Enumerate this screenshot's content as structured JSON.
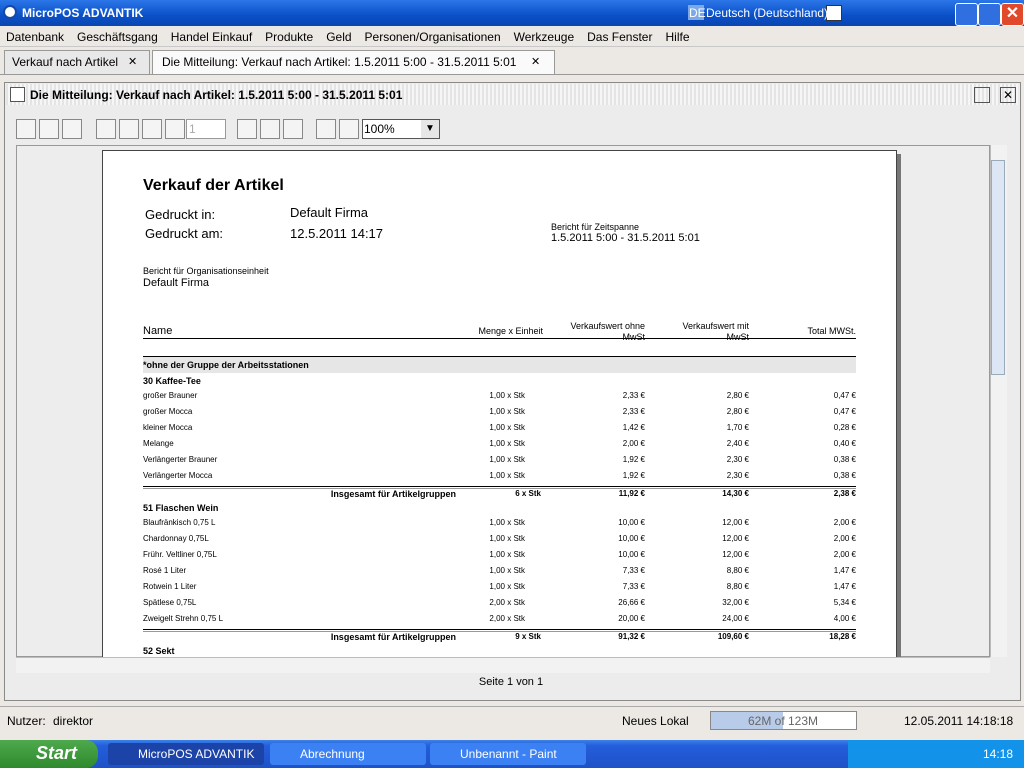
{
  "window": {
    "title": "MicroPOS ADVANTIK",
    "lang_code": "DE",
    "language": "Deutsch (Deutschland)"
  },
  "menu": [
    "Datenbank",
    "Geschäftsgang",
    "Handel Einkauf",
    "Produkte",
    "Geld",
    "Personen/Organisationen",
    "Werkzeuge",
    "Das Fenster",
    "Hilfe"
  ],
  "tabs": [
    "Verkauf nach Artikel",
    "Die Mitteilung: Verkauf nach Artikel: 1.5.2011 5:00 - 31.5.2011 5:01"
  ],
  "panel_title": "Die Mitteilung: Verkauf nach Artikel: 1.5.2011 5:00 - 31.5.2011 5:01",
  "toolbar": {
    "page": "1",
    "zoom": "100%"
  },
  "report": {
    "title": "Verkauf der Artikel",
    "printed_in_label": "Gedruckt in:",
    "printed_in": "Default Firma",
    "printed_at_label": "Gedruckt am:",
    "printed_at": "12.5.2011 14:17",
    "period_label": "Bericht für Zeitspanne",
    "period": "1.5.2011 5:00 - 31.5.2011 5:01",
    "org_label": "Bericht für Organisationseinheit",
    "org": "Default Firma",
    "columns": [
      "Name",
      "Menge x Einheit",
      "Verkaufswert ohne\nMwSt",
      "Verkaufswert mit\nMwSt",
      "Total MWSt."
    ],
    "group_header": "*ohne der Gruppe der Arbeitsstationen",
    "groups": [
      {
        "name": "30 Kaffee-Tee",
        "rows": [
          [
            "großer Brauner",
            "1,00 x Stk",
            "2,33 €",
            "2,80 €",
            "0,47 €"
          ],
          [
            "großer Mocca",
            "1,00 x Stk",
            "2,33 €",
            "2,80 €",
            "0,47 €"
          ],
          [
            "kleiner Mocca",
            "1,00 x Stk",
            "1,42 €",
            "1,70 €",
            "0,28 €"
          ],
          [
            "Melange",
            "1,00 x Stk",
            "2,00 €",
            "2,40 €",
            "0,40 €"
          ],
          [
            "Verlängerter Brauner",
            "1,00 x Stk",
            "1,92 €",
            "2,30 €",
            "0,38 €"
          ],
          [
            "Verlängerter Mocca",
            "1,00 x Stk",
            "1,92 €",
            "2,30 €",
            "0,38 €"
          ]
        ],
        "total": [
          "Insgesamt für Artikelgruppen",
          "6 x Stk",
          "11,92 €",
          "14,30 €",
          "2,38 €"
        ]
      },
      {
        "name": "51 Flaschen Wein",
        "rows": [
          [
            "Blaufränkisch 0,75 L",
            "1,00 x Stk",
            "10,00 €",
            "12,00 €",
            "2,00 €"
          ],
          [
            "Chardonnay 0,75L",
            "1,00 x Stk",
            "10,00 €",
            "12,00 €",
            "2,00 €"
          ],
          [
            "Frühr. Veltliner 0,75L",
            "1,00 x Stk",
            "10,00 €",
            "12,00 €",
            "2,00 €"
          ],
          [
            "Rosé 1 Liter",
            "1,00 x Stk",
            "7,33 €",
            "8,80 €",
            "1,47 €"
          ],
          [
            "Rotwein 1 Liter",
            "1,00 x Stk",
            "7,33 €",
            "8,80 €",
            "1,47 €"
          ],
          [
            "Spätlese 0,75L",
            "2,00 x Stk",
            "26,66 €",
            "32,00 €",
            "5,34 €"
          ],
          [
            "Zweigelt Strehn 0,75 L",
            "2,00 x Stk",
            "20,00 €",
            "24,00 €",
            "4,00 €"
          ]
        ],
        "total": [
          "Insgesamt für Artikelgruppen",
          "9 x Stk",
          "91,32 €",
          "109,60 €",
          "18,28 €"
        ]
      }
    ],
    "next_group": "52 Sekt"
  },
  "page_info": "Seite 1 von 1",
  "status": {
    "user_label": "Nutzer:",
    "user": "direktor",
    "location": "Neues Lokal",
    "memory": "62M of 123M",
    "datetime": "12.05.2011 14:18:18"
  },
  "taskbar": {
    "start": "Start",
    "items": [
      "MicroPOS ADVANTIK",
      "Abrechnung",
      "Unbenannt - Paint"
    ],
    "clock": "14:18"
  }
}
